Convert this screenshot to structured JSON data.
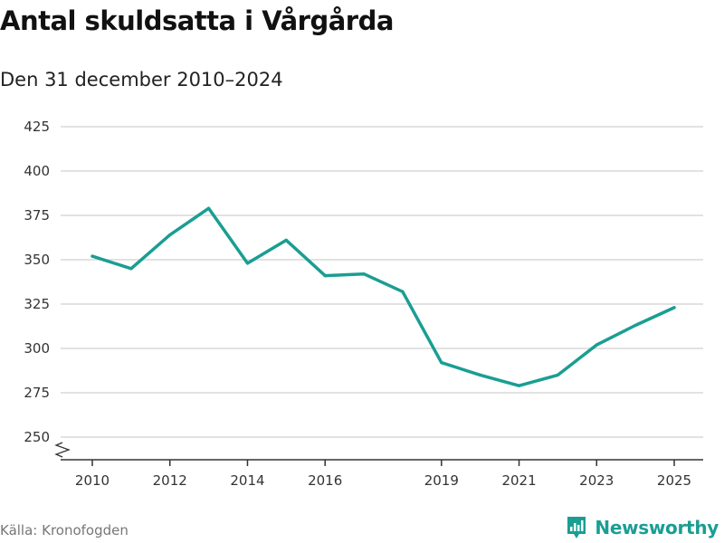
{
  "title": "Antal skuldsatta i Vårgårda",
  "subtitle": "Den 31 december 2010–2024",
  "source": "Källa: Kronofogden",
  "brand": {
    "name": "Newsworthy",
    "icon": "newsworthy-logo-icon",
    "color": "#1a9e92"
  },
  "colors": {
    "line": "#1a9e92",
    "grid": "#d9d9d9",
    "axis": "#333333"
  },
  "chart_data": {
    "type": "line",
    "title": "Antal skuldsatta i Vårgårda",
    "subtitle": "Den 31 december 2010–2024",
    "xlabel": "",
    "ylabel": "",
    "grid": true,
    "axis_break": true,
    "xlim": [
      2010,
      2025
    ],
    "ylim": [
      250,
      425
    ],
    "x_ticks": [
      2010,
      2012,
      2014,
      2016,
      2019,
      2021,
      2023,
      2025
    ],
    "y_ticks": [
      250,
      275,
      300,
      325,
      350,
      375,
      400,
      425
    ],
    "series": [
      {
        "name": "Antal skuldsatta",
        "x": [
          2010,
          2011,
          2012,
          2013,
          2014,
          2015,
          2016,
          2017,
          2018,
          2019,
          2020,
          2021,
          2022,
          2023,
          2024,
          2025
        ],
        "values": [
          352,
          345,
          364,
          379,
          348,
          361,
          341,
          342,
          332,
          292,
          285,
          279,
          285,
          302,
          313,
          323
        ]
      }
    ]
  }
}
